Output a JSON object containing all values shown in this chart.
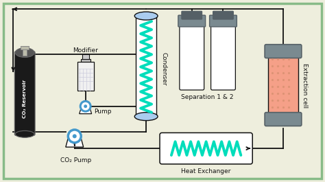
{
  "bg_color": "#eeeedd",
  "border_color": "#88bb88",
  "line_color": "#111111",
  "labels": {
    "co2_reservoir": "CO₂ Reservoir",
    "modifier": "Modifier",
    "pump": "Pump",
    "co2_pump": "CO₂ Pump",
    "condenser": "Condenser",
    "separation": "Separation 1 & 2",
    "heat_exchanger": "Heat Exchanger",
    "extraction_cell": "Extraction cell"
  },
  "condenser_color": "#00ddbb",
  "heat_exchanger_color": "#00ddbb",
  "extraction_fill": "#f5a088",
  "pump_stroke": "#4499cc",
  "cap_color": "#7a8a90",
  "cap_dark": "#556066",
  "tank_body": "#222222",
  "tank_valve": "#bbbbaa",
  "sep_body": "#f0f0f0",
  "modifier_body": "#f0f0f0",
  "modifier_grid": "#ccccdd"
}
